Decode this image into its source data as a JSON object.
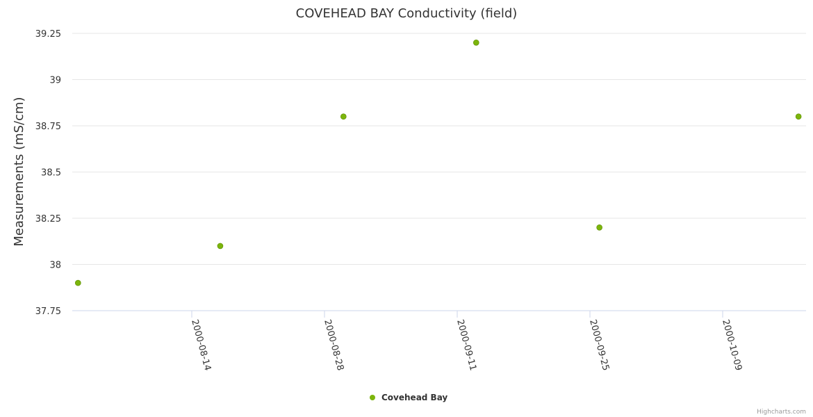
{
  "chart_data": {
    "type": "scatter",
    "title": "COVEHEAD BAY Conductivity (field)",
    "xlabel": "",
    "ylabel": "Measurements (mS/cm)",
    "ylim": [
      37.75,
      39.25
    ],
    "yticks": [
      37.75,
      38,
      38.25,
      38.5,
      38.75,
      39,
      39.25
    ],
    "ytick_labels": [
      "37.75",
      "38",
      "38.25",
      "38.5",
      "38.75",
      "39",
      "39.25"
    ],
    "xticks": [
      "2000-08-14",
      "2000-08-28",
      "2000-09-11",
      "2000-09-25",
      "2000-10-09"
    ],
    "grid": true,
    "legend_position": "bottom-center",
    "series": [
      {
        "name": "Covehead Bay",
        "color": "#7cb50c",
        "points": [
          {
            "x": "2000-08-02",
            "y": 37.9
          },
          {
            "x": "2000-08-17",
            "y": 38.1
          },
          {
            "x": "2000-08-30",
            "y": 38.8
          },
          {
            "x": "2000-09-13",
            "y": 39.2
          },
          {
            "x": "2000-09-26",
            "y": 38.2
          },
          {
            "x": "2000-10-17",
            "y": 38.8
          }
        ]
      }
    ]
  },
  "credit": "Highcharts.com"
}
